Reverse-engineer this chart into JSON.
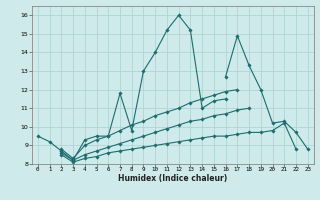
{
  "xlabel": "Humidex (Indice chaleur)",
  "background_color": "#ceeaea",
  "grid_color": "#b0d4d4",
  "line_color": "#1a6e6e",
  "x_values": [
    0,
    1,
    2,
    3,
    4,
    5,
    6,
    7,
    8,
    9,
    10,
    11,
    12,
    13,
    14,
    15,
    16,
    17,
    18,
    19,
    20,
    21,
    22,
    23
  ],
  "series1": [
    9.5,
    9.2,
    null,
    null,
    null,
    null,
    null,
    null,
    null,
    null,
    null,
    null,
    null,
    null,
    null,
    null,
    null,
    null,
    null,
    null,
    null,
    null,
    null,
    null
  ],
  "series2": [
    9.5,
    9.2,
    8.7,
    8.2,
    9.3,
    9.5,
    9.5,
    11.8,
    9.8,
    13.0,
    14.0,
    15.2,
    16.0,
    15.2,
    11.0,
    11.4,
    11.5,
    null,
    null,
    null,
    null,
    null,
    null,
    null
  ],
  "series3": [
    null,
    null,
    null,
    null,
    null,
    null,
    null,
    null,
    null,
    null,
    null,
    null,
    null,
    null,
    null,
    null,
    12.7,
    14.9,
    13.3,
    12.0,
    10.2,
    10.3,
    9.7,
    8.8
  ],
  "series4": [
    null,
    null,
    8.8,
    8.3,
    9.0,
    9.3,
    9.5,
    9.8,
    10.1,
    10.3,
    10.6,
    10.8,
    11.0,
    11.3,
    11.5,
    11.7,
    11.9,
    12.0,
    null,
    null,
    null,
    null,
    null,
    null
  ],
  "series5": [
    null,
    null,
    8.6,
    8.2,
    8.5,
    8.7,
    8.9,
    9.1,
    9.3,
    9.5,
    9.7,
    9.9,
    10.1,
    10.3,
    10.4,
    10.6,
    10.7,
    10.9,
    11.0,
    null,
    null,
    null,
    null,
    null
  ],
  "series6": [
    null,
    null,
    8.5,
    8.1,
    8.3,
    8.4,
    8.6,
    8.7,
    8.8,
    8.9,
    9.0,
    9.1,
    9.2,
    9.3,
    9.4,
    9.5,
    9.5,
    9.6,
    9.7,
    9.7,
    9.8,
    10.2,
    8.8,
    null
  ],
  "ylim": [
    8.0,
    16.5
  ],
  "xlim": [
    -0.5,
    23.5
  ],
  "yticks": [
    8,
    9,
    10,
    11,
    12,
    13,
    14,
    15,
    16
  ],
  "xticks": [
    0,
    1,
    2,
    3,
    4,
    5,
    6,
    7,
    8,
    9,
    10,
    11,
    12,
    13,
    14,
    15,
    16,
    17,
    18,
    19,
    20,
    21,
    22,
    23
  ]
}
